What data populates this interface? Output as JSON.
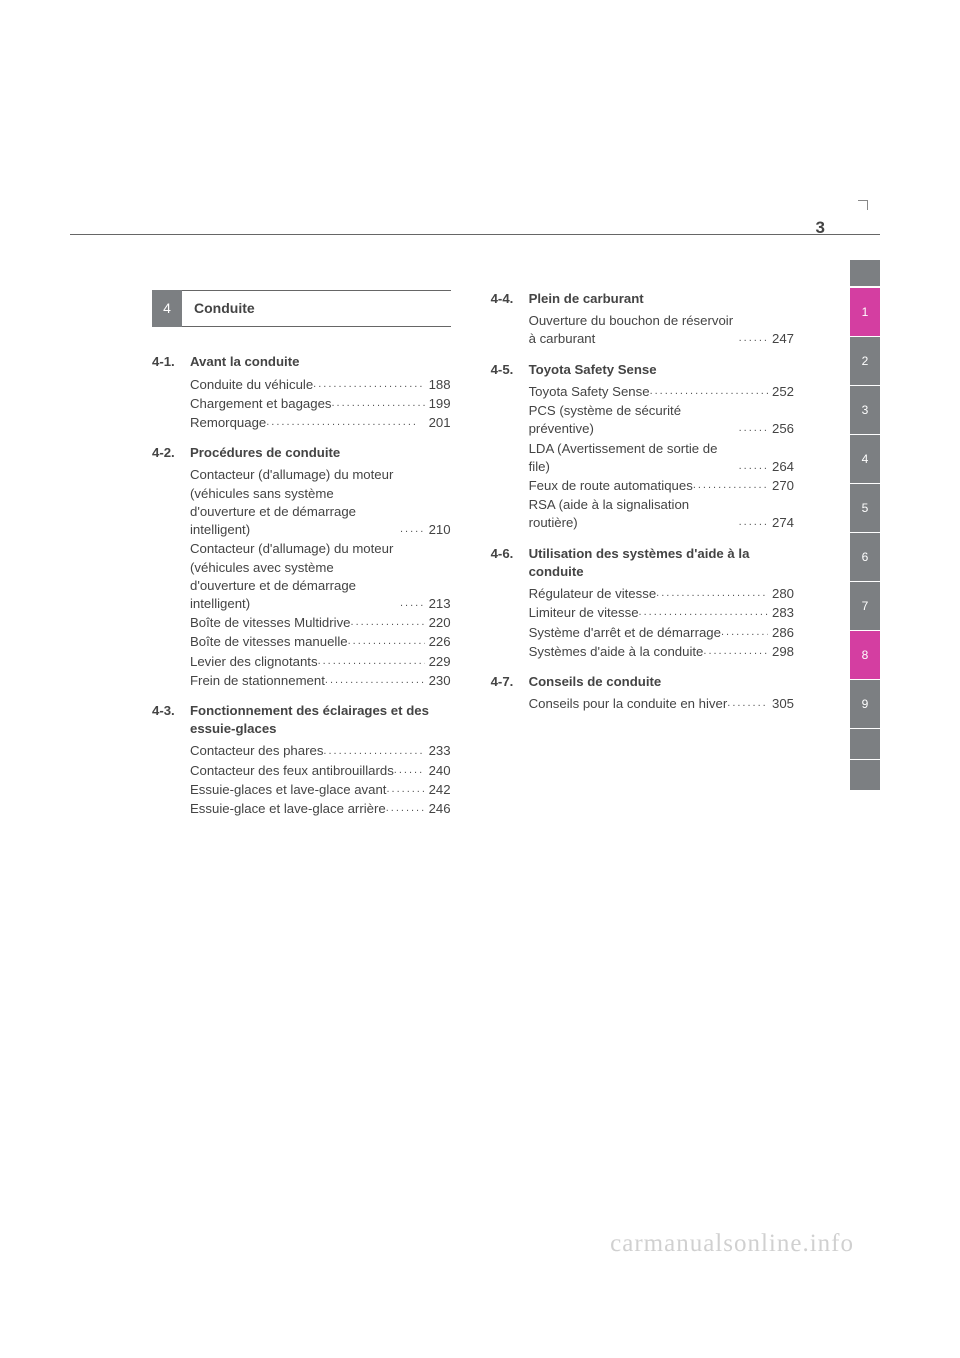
{
  "page_number": "3",
  "chapter": {
    "number": "4",
    "label": "Conduite"
  },
  "tabs": [
    "1",
    "2",
    "3",
    "4",
    "5",
    "6",
    "7",
    "8",
    "9"
  ],
  "tabs_magenta": [
    0,
    7
  ],
  "left_sections": [
    {
      "num": "4-1.",
      "title": "Avant la conduite",
      "entries": [
        {
          "label": "Conduite du véhicule",
          "page": "188"
        },
        {
          "label": "Chargement et bagages",
          "page": "199"
        },
        {
          "label": "Remorquage",
          "page": "201"
        }
      ]
    },
    {
      "num": "4-2.",
      "title": "Procédures de conduite",
      "entries": [
        {
          "label": "Contacteur (d'allumage) du moteur (véhicules sans système d'ouverture et de démarrage intelligent)",
          "page": "210",
          "multi": true
        },
        {
          "label": "Contacteur (d'allumage) du moteur (véhicules avec système d'ouverture et de démarrage intelligent)",
          "page": "213",
          "multi": true
        },
        {
          "label": "Boîte de vitesses Multidrive",
          "page": "220"
        },
        {
          "label": "Boîte de vitesses manuelle",
          "page": "226"
        },
        {
          "label": "Levier des clignotants",
          "page": "229"
        },
        {
          "label": "Frein de stationnement",
          "page": "230"
        }
      ]
    },
    {
      "num": "4-3.",
      "title": "Fonctionnement des éclairages et des essuie-glaces",
      "entries": [
        {
          "label": "Contacteur des phares",
          "page": "233"
        },
        {
          "label": "Contacteur des feux antibrouillards",
          "page": "240",
          "multi": true
        },
        {
          "label": "Essuie-glaces et lave-glace avant",
          "page": "242",
          "multi": true
        },
        {
          "label": "Essuie-glace et lave-glace arrière",
          "page": "246",
          "multi": true
        }
      ]
    }
  ],
  "right_sections": [
    {
      "num": "4-4.",
      "title": "Plein de carburant",
      "entries": [
        {
          "label": "Ouverture du bouchon de réservoir à carburant",
          "page": "247",
          "multi": true
        }
      ]
    },
    {
      "num": "4-5.",
      "title": "Toyota Safety Sense",
      "entries": [
        {
          "label": "Toyota Safety Sense",
          "page": "252"
        },
        {
          "label": "PCS (système de sécurité préventive)",
          "page": "256",
          "multi": true
        },
        {
          "label": "LDA (Avertissement de sortie de file)",
          "page": "264",
          "multi": true
        },
        {
          "label": "Feux de route automatiques",
          "page": "270"
        },
        {
          "label": "RSA (aide à la signalisation routière)",
          "page": "274",
          "multi": true
        }
      ]
    },
    {
      "num": "4-6.",
      "title": "Utilisation des systèmes d'aide à la conduite",
      "entries": [
        {
          "label": "Régulateur de vitesse",
          "page": "280"
        },
        {
          "label": "Limiteur de vitesse",
          "page": "283"
        },
        {
          "label": "Système d'arrêt et de démarrage",
          "page": "286",
          "multi": true
        },
        {
          "label": "Systèmes d'aide à la conduite",
          "page": "298",
          "multi": true
        }
      ]
    },
    {
      "num": "4-7.",
      "title": "Conseils de conduite",
      "entries": [
        {
          "label": "Conseils pour la conduite en hiver",
          "page": "305",
          "multi": true
        }
      ]
    }
  ],
  "watermark": "carmanualsonline.info"
}
